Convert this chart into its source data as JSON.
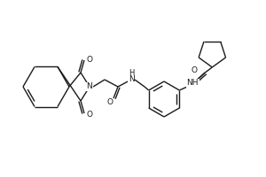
{
  "bg_color": "#ffffff",
  "line_color": "#1a1a1a",
  "line_width": 1.0,
  "font_size": 6.5,
  "figsize": [
    3.0,
    2.0
  ],
  "dpi": 100,
  "atoms": {
    "O_top": "O",
    "O_bot": "O",
    "N_imide": "N",
    "O_amide1": "O",
    "HN_amide1": "H\nN",
    "O_amide2": "O",
    "NH_amide2": "NH"
  }
}
